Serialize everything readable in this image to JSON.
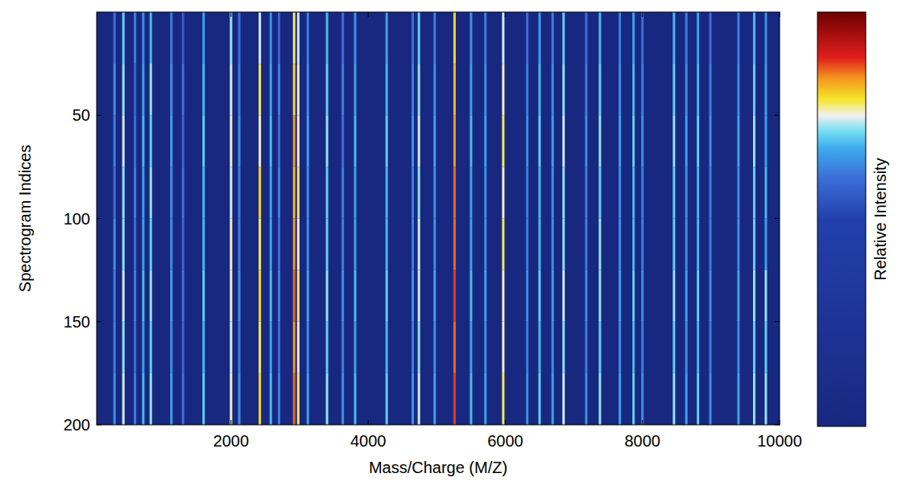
{
  "chart_data": {
    "type": "heatmap",
    "xlabel": "Mass/Charge (M/Z)",
    "ylabel": "Spectrogram Indices",
    "xlim": [
      40,
      10000
    ],
    "xticks": [
      2000,
      4000,
      6000,
      8000,
      10000
    ],
    "ylim": [
      0,
      200
    ],
    "yticks": [
      50,
      100,
      150,
      200
    ],
    "x": [
      300,
      430,
      600,
      720,
      830,
      1130,
      1300,
      1600,
      2000,
      2120,
      2420,
      2580,
      2700,
      2920,
      2980,
      3120,
      3400,
      3630,
      3810,
      4270,
      4650,
      4740,
      4970,
      5260,
      5500,
      5710,
      5970,
      6320,
      6500,
      6690,
      6850,
      7180,
      7380,
      7670,
      7870,
      8000,
      8460,
      8640,
      8810,
      8990,
      9400,
      9630,
      9800
    ],
    "y_bins": [
      0,
      25,
      50,
      75,
      100,
      125,
      150,
      175,
      200
    ],
    "cells": [
      [
        0.6,
        0.7,
        0.62,
        0.64,
        0.68,
        0.62,
        0.56,
        0.66,
        0.72,
        0.6,
        0.74,
        0.64,
        0.58,
        0.78,
        0.74,
        0.62,
        0.68,
        0.6,
        0.64,
        0.66,
        0.6,
        0.7,
        0.62,
        0.8,
        0.64,
        0.62,
        0.74,
        0.6,
        0.66,
        0.62,
        0.7,
        0.6,
        0.68,
        0.62,
        0.66,
        0.6,
        0.68,
        0.62,
        0.66,
        0.6,
        0.62,
        0.68,
        0.64
      ],
      [
        0.64,
        0.72,
        0.58,
        0.66,
        0.72,
        0.64,
        0.6,
        0.68,
        0.74,
        0.62,
        0.78,
        0.66,
        0.62,
        0.8,
        0.76,
        0.64,
        0.7,
        0.62,
        0.66,
        0.68,
        0.62,
        0.72,
        0.64,
        0.82,
        0.66,
        0.64,
        0.76,
        0.62,
        0.68,
        0.64,
        0.72,
        0.62,
        0.7,
        0.64,
        0.68,
        0.62,
        0.7,
        0.64,
        0.68,
        0.62,
        0.64,
        0.7,
        0.66
      ],
      [
        0.62,
        0.74,
        0.6,
        0.68,
        0.7,
        0.66,
        0.58,
        0.7,
        0.76,
        0.64,
        0.76,
        0.68,
        0.6,
        0.84,
        0.76,
        0.66,
        0.72,
        0.6,
        0.68,
        0.7,
        0.64,
        0.74,
        0.66,
        0.84,
        0.68,
        0.66,
        0.78,
        0.64,
        0.7,
        0.66,
        0.74,
        0.64,
        0.72,
        0.66,
        0.7,
        0.64,
        0.72,
        0.66,
        0.7,
        0.64,
        0.66,
        0.72,
        0.66
      ],
      [
        0.6,
        0.72,
        0.62,
        0.66,
        0.72,
        0.64,
        0.6,
        0.68,
        0.74,
        0.62,
        0.8,
        0.66,
        0.62,
        0.82,
        0.78,
        0.64,
        0.7,
        0.62,
        0.66,
        0.68,
        0.62,
        0.72,
        0.64,
        0.86,
        0.66,
        0.64,
        0.76,
        0.62,
        0.68,
        0.64,
        0.72,
        0.62,
        0.7,
        0.64,
        0.68,
        0.62,
        0.7,
        0.64,
        0.68,
        0.62,
        0.64,
        0.7,
        0.68
      ],
      [
        0.64,
        0.72,
        0.6,
        0.66,
        0.7,
        0.64,
        0.58,
        0.68,
        0.76,
        0.62,
        0.78,
        0.66,
        0.6,
        0.84,
        0.76,
        0.64,
        0.7,
        0.62,
        0.66,
        0.68,
        0.62,
        0.74,
        0.64,
        0.86,
        0.66,
        0.64,
        0.78,
        0.62,
        0.68,
        0.64,
        0.72,
        0.62,
        0.72,
        0.64,
        0.68,
        0.62,
        0.7,
        0.64,
        0.68,
        0.62,
        0.64,
        0.7,
        0.66
      ],
      [
        0.62,
        0.74,
        0.62,
        0.68,
        0.72,
        0.66,
        0.6,
        0.7,
        0.76,
        0.64,
        0.8,
        0.68,
        0.62,
        0.86,
        0.78,
        0.66,
        0.72,
        0.64,
        0.68,
        0.7,
        0.64,
        0.74,
        0.66,
        0.88,
        0.68,
        0.66,
        0.76,
        0.64,
        0.7,
        0.66,
        0.74,
        0.64,
        0.72,
        0.66,
        0.7,
        0.64,
        0.72,
        0.66,
        0.7,
        0.64,
        0.66,
        0.72,
        0.72
      ],
      [
        0.62,
        0.72,
        0.6,
        0.66,
        0.7,
        0.64,
        0.58,
        0.68,
        0.74,
        0.62,
        0.78,
        0.66,
        0.6,
        0.84,
        0.76,
        0.64,
        0.7,
        0.62,
        0.66,
        0.68,
        0.62,
        0.72,
        0.64,
        0.86,
        0.66,
        0.64,
        0.76,
        0.62,
        0.68,
        0.64,
        0.72,
        0.62,
        0.7,
        0.64,
        0.68,
        0.62,
        0.7,
        0.64,
        0.68,
        0.62,
        0.64,
        0.7,
        0.7
      ],
      [
        0.64,
        0.74,
        0.62,
        0.68,
        0.72,
        0.66,
        0.6,
        0.7,
        0.76,
        0.64,
        0.8,
        0.68,
        0.62,
        0.86,
        0.78,
        0.66,
        0.72,
        0.64,
        0.68,
        0.7,
        0.64,
        0.74,
        0.66,
        0.88,
        0.68,
        0.66,
        0.78,
        0.64,
        0.7,
        0.66,
        0.74,
        0.64,
        0.72,
        0.66,
        0.7,
        0.64,
        0.72,
        0.66,
        0.7,
        0.64,
        0.66,
        0.72,
        0.72
      ]
    ],
    "colorbar": {
      "label": "Relative Intensity",
      "range": [
        0,
        1
      ]
    }
  }
}
